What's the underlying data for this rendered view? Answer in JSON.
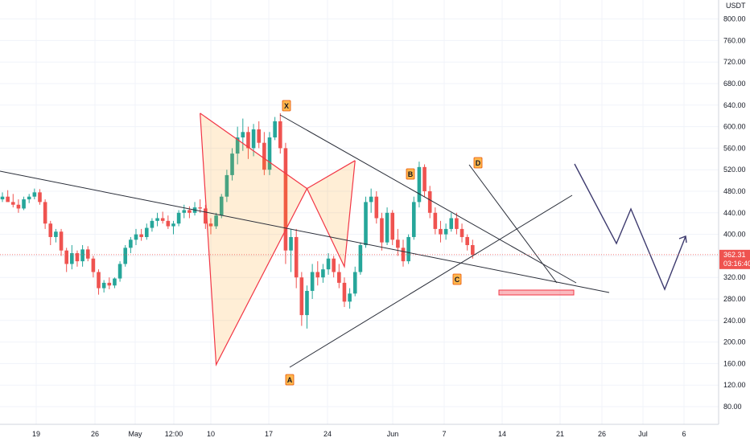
{
  "chart_data": {
    "type": "candlestick",
    "quote_currency": "USDT",
    "y_ticks": [
      "80.00",
      "120.00",
      "160.00",
      "200.00",
      "240.00",
      "280.00",
      "320.00",
      "360.00",
      "400.00",
      "440.00",
      "480.00",
      "520.00",
      "560.00",
      "600.00",
      "640.00",
      "680.00",
      "720.00",
      "760.00",
      "800.00"
    ],
    "x_ticks": [
      "19",
      "26",
      "May",
      "12:00",
      "10",
      "17",
      "24",
      "Jun",
      "7",
      "14",
      "21",
      "26",
      "Jul",
      "6"
    ],
    "last_price": "362.31",
    "countdown": "03:16:40",
    "pattern_points": [
      {
        "label": "X",
        "day": 37,
        "price": 625
      },
      {
        "label": "A",
        "day": 40,
        "price": 158
      },
      {
        "label": "B",
        "day": 57,
        "price": 485
      },
      {
        "label": "C",
        "day": 64,
        "price": 340
      },
      {
        "label": "D",
        "day": 66,
        "price": 537
      }
    ],
    "series": [
      {
        "name": "",
        "ohlc": [
          [
            465,
            478,
            460,
            470
          ],
          [
            470,
            482,
            462,
            460
          ],
          [
            460,
            475,
            450,
            455
          ],
          [
            455,
            465,
            440,
            448
          ],
          [
            448,
            470,
            445,
            465
          ],
          [
            465,
            475,
            458,
            470
          ],
          [
            470,
            485,
            465,
            478
          ],
          [
            478,
            484,
            455,
            460
          ],
          [
            460,
            465,
            410,
            420
          ],
          [
            420,
            425,
            380,
            395
          ],
          [
            395,
            410,
            385,
            405
          ],
          [
            405,
            410,
            360,
            370
          ],
          [
            370,
            375,
            330,
            345
          ],
          [
            345,
            380,
            335,
            365
          ],
          [
            365,
            370,
            340,
            350
          ],
          [
            350,
            380,
            340,
            372
          ],
          [
            372,
            378,
            350,
            355
          ],
          [
            355,
            360,
            320,
            330
          ],
          [
            330,
            335,
            288,
            300
          ],
          [
            300,
            315,
            292,
            310
          ],
          [
            310,
            320,
            298,
            305
          ],
          [
            305,
            320,
            300,
            318
          ],
          [
            318,
            350,
            312,
            345
          ],
          [
            345,
            380,
            340,
            375
          ],
          [
            375,
            395,
            365,
            390
          ],
          [
            390,
            410,
            380,
            400
          ],
          [
            400,
            410,
            388,
            395
          ],
          [
            395,
            420,
            390,
            412
          ],
          [
            412,
            430,
            405,
            425
          ],
          [
            425,
            440,
            415,
            430
          ],
          [
            430,
            442,
            420,
            425
          ],
          [
            425,
            435,
            410,
            415
          ],
          [
            415,
            425,
            400,
            420
          ],
          [
            420,
            445,
            415,
            440
          ],
          [
            440,
            455,
            430,
            445
          ],
          [
            445,
            452,
            430,
            440
          ],
          [
            440,
            460,
            435,
            450
          ],
          [
            450,
            465,
            440,
            448
          ],
          [
            448,
            455,
            410,
            420
          ],
          [
            420,
            430,
            400,
            415
          ],
          [
            415,
            440,
            410,
            435
          ],
          [
            435,
            475,
            430,
            470
          ],
          [
            470,
            520,
            460,
            510
          ],
          [
            510,
            560,
            500,
            550
          ],
          [
            550,
            600,
            530,
            580
          ],
          [
            580,
            615,
            555,
            590
          ],
          [
            590,
            600,
            540,
            560
          ],
          [
            560,
            605,
            545,
            595
          ],
          [
            595,
            610,
            560,
            570
          ],
          [
            570,
            590,
            510,
            520
          ],
          [
            520,
            590,
            510,
            580
          ],
          [
            580,
            618,
            575,
            610
          ],
          [
            610,
            625,
            550,
            560
          ],
          [
            560,
            570,
            345,
            370
          ],
          [
            370,
            410,
            330,
            395
          ],
          [
            395,
            410,
            300,
            320
          ],
          [
            320,
            330,
            230,
            250
          ],
          [
            250,
            305,
            225,
            295
          ],
          [
            295,
            345,
            280,
            330
          ],
          [
            330,
            350,
            305,
            320
          ],
          [
            320,
            345,
            310,
            335
          ],
          [
            335,
            365,
            325,
            355
          ],
          [
            355,
            360,
            320,
            330
          ],
          [
            330,
            345,
            300,
            310
          ],
          [
            310,
            320,
            265,
            275
          ],
          [
            275,
            300,
            262,
            290
          ],
          [
            290,
            340,
            285,
            330
          ],
          [
            330,
            385,
            325,
            380
          ],
          [
            380,
            470,
            375,
            460
          ],
          [
            460,
            485,
            440,
            470
          ],
          [
            470,
            480,
            420,
            430
          ],
          [
            430,
            440,
            370,
            385
          ],
          [
            385,
            450,
            380,
            440
          ],
          [
            440,
            445,
            380,
            390
          ],
          [
            390,
            410,
            360,
            375
          ],
          [
            375,
            390,
            340,
            350
          ],
          [
            350,
            400,
            345,
            395
          ],
          [
            395,
            470,
            390,
            460
          ],
          [
            460,
            535,
            450,
            525
          ],
          [
            525,
            530,
            470,
            480
          ],
          [
            480,
            490,
            430,
            440
          ],
          [
            440,
            450,
            400,
            410
          ],
          [
            410,
            425,
            385,
            400
          ],
          [
            400,
            420,
            390,
            410
          ],
          [
            410,
            440,
            405,
            430
          ],
          [
            430,
            440,
            400,
            410
          ],
          [
            410,
            420,
            385,
            395
          ],
          [
            395,
            400,
            370,
            380
          ],
          [
            380,
            390,
            355,
            362
          ]
        ]
      }
    ]
  }
}
